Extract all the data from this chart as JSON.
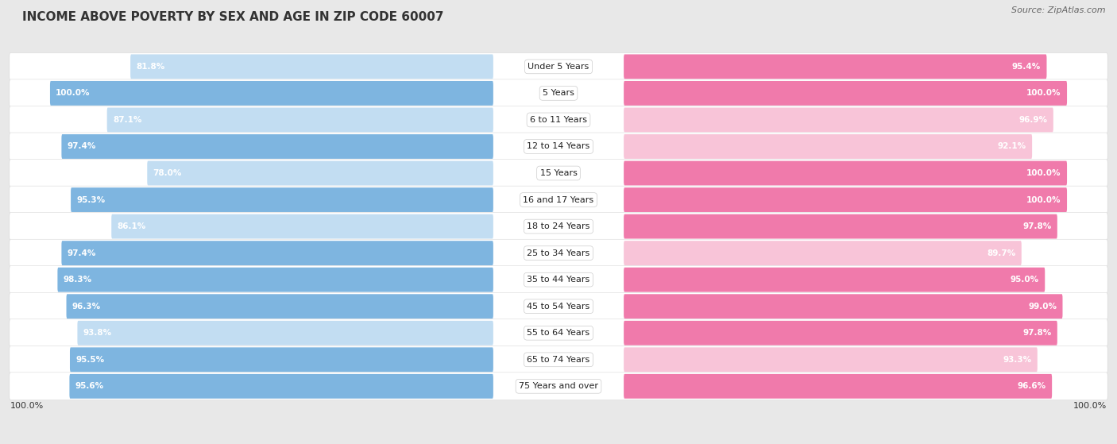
{
  "title": "INCOME ABOVE POVERTY BY SEX AND AGE IN ZIP CODE 60007",
  "source": "Source: ZipAtlas.com",
  "categories": [
    "Under 5 Years",
    "5 Years",
    "6 to 11 Years",
    "12 to 14 Years",
    "15 Years",
    "16 and 17 Years",
    "18 to 24 Years",
    "25 to 34 Years",
    "35 to 44 Years",
    "45 to 54 Years",
    "55 to 64 Years",
    "65 to 74 Years",
    "75 Years and over"
  ],
  "male_values": [
    81.8,
    100.0,
    87.1,
    97.4,
    78.0,
    95.3,
    86.1,
    97.4,
    98.3,
    96.3,
    93.8,
    95.5,
    95.6
  ],
  "female_values": [
    95.4,
    100.0,
    96.9,
    92.1,
    100.0,
    100.0,
    97.8,
    89.7,
    95.0,
    99.0,
    97.8,
    93.3,
    96.6
  ],
  "male_color": "#7eb5e0",
  "female_color": "#f07aab",
  "male_color_light": "#c2ddf2",
  "female_color_light": "#f8c4d8",
  "bg_color": "#e8e8e8",
  "row_bg_color": "#f5f5f5",
  "title_fontsize": 11,
  "source_fontsize": 8,
  "label_fontsize": 8,
  "value_fontsize": 7.5,
  "legend_fontsize": 9,
  "bottom_label": "100.0%",
  "male_colors_by_row": [
    "light",
    "full",
    "light",
    "full",
    "light",
    "full",
    "light",
    "full",
    "full",
    "full",
    "light",
    "full",
    "full"
  ],
  "female_colors_by_row": [
    "full",
    "full",
    "light",
    "light",
    "full",
    "full",
    "full",
    "light",
    "full",
    "full",
    "full",
    "light",
    "full"
  ]
}
